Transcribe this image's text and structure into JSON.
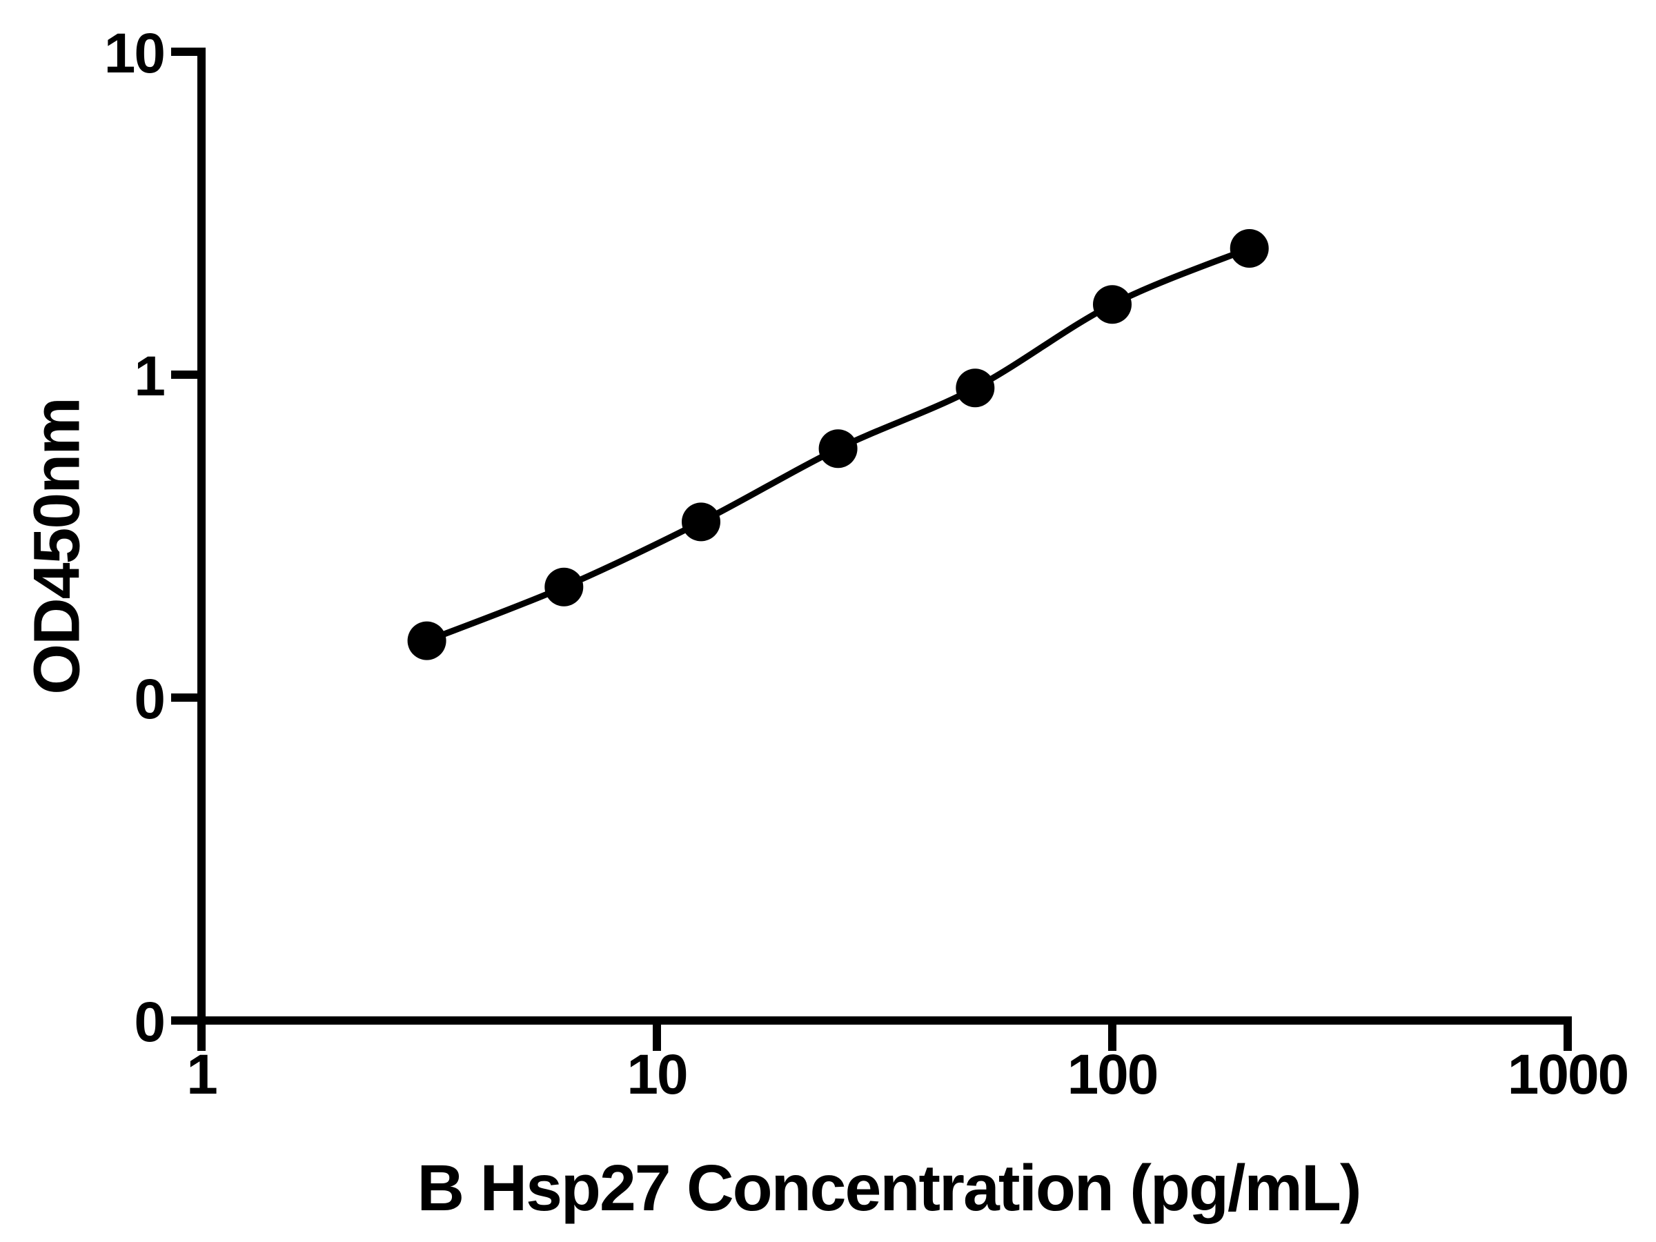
{
  "figure": {
    "background_color": "#ffffff",
    "ink_color": "#000000"
  },
  "chart_data": {
    "type": "scatter",
    "title": "",
    "xlabel": "B Hsp27 Concentration (pg/mL)",
    "ylabel": "OD450nm",
    "x_scale": "log10",
    "y_scale": "log10",
    "xlim": [
      1,
      1000
    ],
    "ylim": [
      0.01,
      10
    ],
    "grid": false,
    "legend": "none",
    "marker": "filled-circle",
    "line_through_points": true,
    "x_ticks": [
      {
        "value": 1,
        "label": "1"
      },
      {
        "value": 10,
        "label": "10"
      },
      {
        "value": 100,
        "label": "100"
      },
      {
        "value": 1000,
        "label": "1000"
      }
    ],
    "y_ticks": [
      {
        "value": 10,
        "label": "10"
      },
      {
        "value": 1,
        "label": "1"
      },
      {
        "value": 0.1,
        "label": "0"
      },
      {
        "value": 0.01,
        "label": "0"
      }
    ],
    "series": [
      {
        "color": "#000000",
        "points": [
          {
            "x": 3.125,
            "y": 0.15
          },
          {
            "x": 6.25,
            "y": 0.22
          },
          {
            "x": 12.5,
            "y": 0.35
          },
          {
            "x": 25,
            "y": 0.59
          },
          {
            "x": 50,
            "y": 0.91
          },
          {
            "x": 100,
            "y": 1.65
          },
          {
            "x": 200,
            "y": 2.46
          }
        ]
      }
    ]
  }
}
